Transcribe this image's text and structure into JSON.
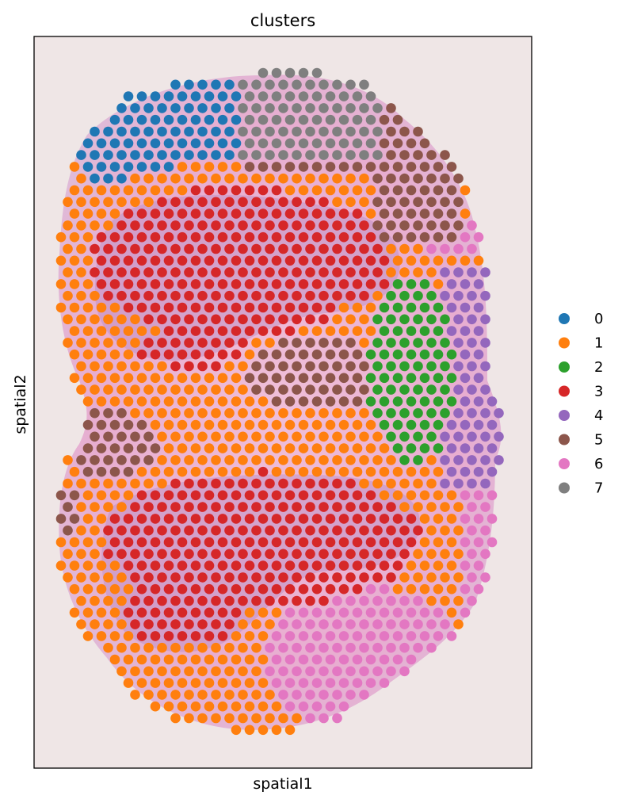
{
  "chart_data": {
    "type": "scatter",
    "title": "clusters",
    "xlabel": "spatial1",
    "ylabel": "spatial2",
    "xticks": [],
    "yticks": [],
    "grid": false,
    "background": "H&E stained tissue section image",
    "legend": {
      "placement": "right",
      "entries": [
        "0",
        "1",
        "2",
        "3",
        "4",
        "5",
        "6",
        "7"
      ]
    },
    "colors": [
      "#1f77b4",
      "#ff7f0e",
      "#2ca02c",
      "#d62728",
      "#9467bd",
      "#8c564b",
      "#e377c2",
      "#7f7f7f"
    ],
    "spot_color_order": "clusters 0-7",
    "series": [
      {
        "name": "0",
        "approx_region": "top-left"
      },
      {
        "name": "1",
        "approx_region": "rim around both lobes"
      },
      {
        "name": "2",
        "approx_region": "right-middle band"
      },
      {
        "name": "3",
        "approx_region": "cores of upper and lower lobes"
      },
      {
        "name": "4",
        "approx_region": "right edge, middle"
      },
      {
        "name": "5",
        "approx_region": "upper-right and central boundary"
      },
      {
        "name": "6",
        "approx_region": "lower-right lobe and right edge"
      },
      {
        "name": "7",
        "approx_region": "top center"
      }
    ]
  }
}
